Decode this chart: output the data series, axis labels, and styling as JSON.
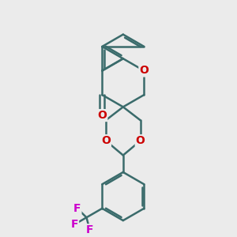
{
  "bg_color": "#ebebeb",
  "bond_color": "#3a6b6b",
  "bond_width": 1.8,
  "dbo": 0.055,
  "O_color": "#cc0000",
  "F_color": "#cc00cc",
  "O_fontsize": 10,
  "F_fontsize": 10,
  "figsize": [
    3.0,
    3.0
  ],
  "dpi": 100,
  "xlim": [
    0,
    10
  ],
  "ylim": [
    0,
    10
  ]
}
